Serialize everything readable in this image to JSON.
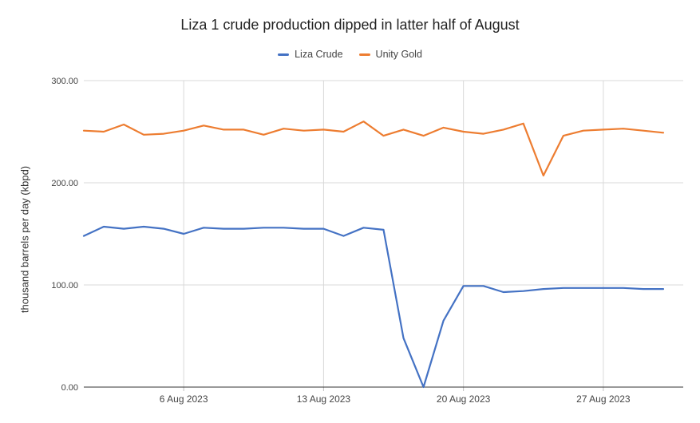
{
  "chart_data": {
    "type": "line",
    "title": "Liza 1 crude production dipped in latter half of August",
    "xlabel": "",
    "ylabel": "thousand barrels per day (kbpd)",
    "ylim": [
      0,
      300
    ],
    "yticks": [
      "0.00",
      "100.00",
      "200.00",
      "300.00"
    ],
    "xticks": [
      {
        "label": "6 Aug 2023",
        "day": 6
      },
      {
        "label": "13 Aug 2023",
        "day": 13
      },
      {
        "label": "20 Aug 2023",
        "day": 20
      },
      {
        "label": "27 Aug 2023",
        "day": 27
      }
    ],
    "legend_position": "top-center",
    "grid": true,
    "x": [
      1,
      2,
      3,
      4,
      5,
      6,
      7,
      8,
      9,
      10,
      11,
      12,
      13,
      14,
      15,
      16,
      17,
      18,
      19,
      20,
      21,
      22,
      23,
      24,
      25,
      26,
      27,
      28,
      29,
      30,
      31
    ],
    "x_range": [
      1,
      31
    ],
    "series": [
      {
        "name": "Liza Crude",
        "color": "#4472c4",
        "values": [
          148,
          157,
          155,
          157,
          155,
          150,
          156,
          155,
          155,
          156,
          156,
          155,
          155,
          148,
          156,
          154,
          48,
          0,
          65,
          99,
          99,
          93,
          94,
          96,
          97,
          97,
          97,
          97,
          96,
          96,
          null
        ]
      },
      {
        "name": "Unity Gold",
        "color": "#ed7d31",
        "values": [
          251,
          250,
          257,
          247,
          248,
          251,
          256,
          252,
          252,
          247,
          253,
          251,
          252,
          250,
          260,
          246,
          252,
          246,
          254,
          250,
          248,
          252,
          258,
          207,
          246,
          251,
          252,
          253,
          251,
          249,
          null
        ]
      }
    ]
  }
}
